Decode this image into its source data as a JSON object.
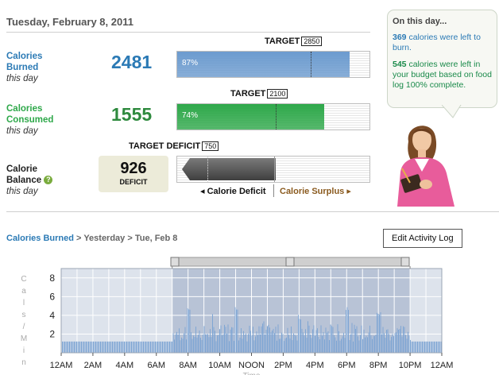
{
  "header": {
    "date": "Tuesday, February 8, 2011"
  },
  "burned": {
    "label_line1": "Calories",
    "label_line2": "Burned",
    "sublabel": "this day",
    "value": "2481",
    "target_label": "TARGET",
    "target_value": "2850",
    "percent_text": "87%",
    "fill_fraction": 0.87,
    "color": "#6c9bcf"
  },
  "consumed": {
    "label_line1": "Calories",
    "label_line2": "Consumed",
    "sublabel": "this day",
    "value": "1555",
    "target_label": "TARGET",
    "target_value": "2100",
    "percent_text": "74%",
    "fill_fraction": 0.74,
    "color": "#2ea84a"
  },
  "balance": {
    "label_line1": "Calorie",
    "label_line2": "Balance",
    "sublabel": "this day",
    "help_icon": "question-circle-icon",
    "value": "926",
    "value_caption": "DEFICIT",
    "target_label": "TARGET DEFICIT",
    "target_value": "750",
    "deficit_label": "Calorie Deficit",
    "surplus_label": "Calorie Surplus",
    "deficit_arrow": "arrow-left-icon",
    "surplus_arrow": "arrow-right-icon"
  },
  "on_this_day": {
    "title": "On this day...",
    "item1_value": "369",
    "item1_text": " calories were left to burn.",
    "item2_value": "545",
    "item2_text": " calories were left in your budget based on food log 100% complete."
  },
  "breadcrumb": {
    "root": "Calories Burned",
    "sep1": " > ",
    "mid": "Yesterday",
    "sep2": " > ",
    "current": "Tue, Feb 8"
  },
  "edit_button": "Edit Activity Log",
  "chart_data": {
    "type": "bar",
    "title": "",
    "ylabel": "Cals/Min",
    "xlabel": "Time",
    "ylim": [
      0,
      9
    ],
    "yticks": [
      "8",
      "6",
      "4",
      "2"
    ],
    "xticks": [
      "12AM",
      "2AM",
      "4AM",
      "6AM",
      "8AM",
      "10AM",
      "NOON",
      "2PM",
      "4PM",
      "6PM",
      "8PM",
      "10PM",
      "12AM"
    ],
    "selected_range": [
      "7AM",
      "10PM"
    ],
    "baseline_value": 1.2,
    "peak_values": [
      {
        "time": "8AM",
        "value": 5.2
      },
      {
        "time": "11AM",
        "value": 5.0
      },
      {
        "time": "3PM",
        "value": 4.1
      },
      {
        "time": "6PM",
        "value": 5.3
      },
      {
        "time": "8PM",
        "value": 4.6
      }
    ],
    "colors": {
      "bar": "#7fa6d4",
      "shade": "#b8c3d6",
      "background": "#dde3ec"
    }
  }
}
